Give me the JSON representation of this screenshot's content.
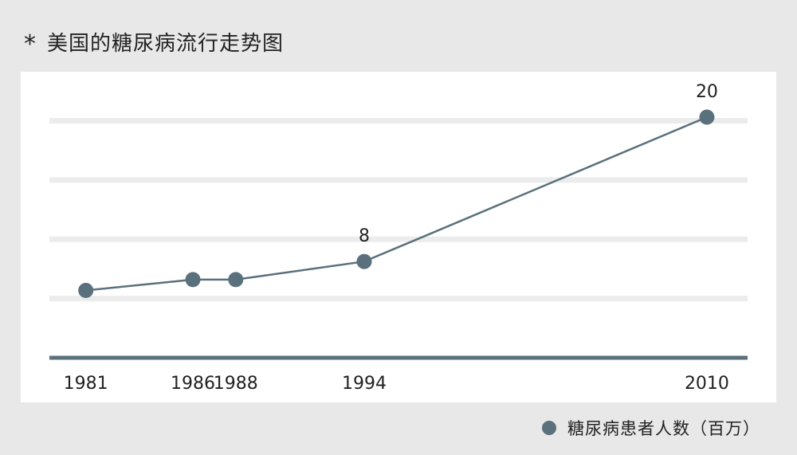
{
  "header": {
    "marker": "*",
    "title": "美国的糖尿病流行走势图"
  },
  "chart_data": {
    "type": "line",
    "title": "美国的糖尿病流行走势图",
    "xlabel": "",
    "ylabel": "",
    "x": [
      1981,
      1986,
      1988,
      1994,
      2010
    ],
    "x_tick_labels": [
      "1981",
      "1986",
      "1988",
      "1994",
      "2010"
    ],
    "series": [
      {
        "name": "糖尿病患者人数（百万）",
        "values": [
          5.6,
          6.5,
          6.5,
          8,
          20
        ],
        "color": "#5a707c"
      }
    ],
    "data_labels": [
      {
        "x": 1994,
        "text": "8"
      },
      {
        "x": 2010,
        "text": "20"
      }
    ],
    "ylim": [
      0,
      20
    ],
    "grid": true,
    "legend_position": "bottom-right"
  },
  "legend": {
    "label": "糖尿病患者人数（百万）"
  }
}
